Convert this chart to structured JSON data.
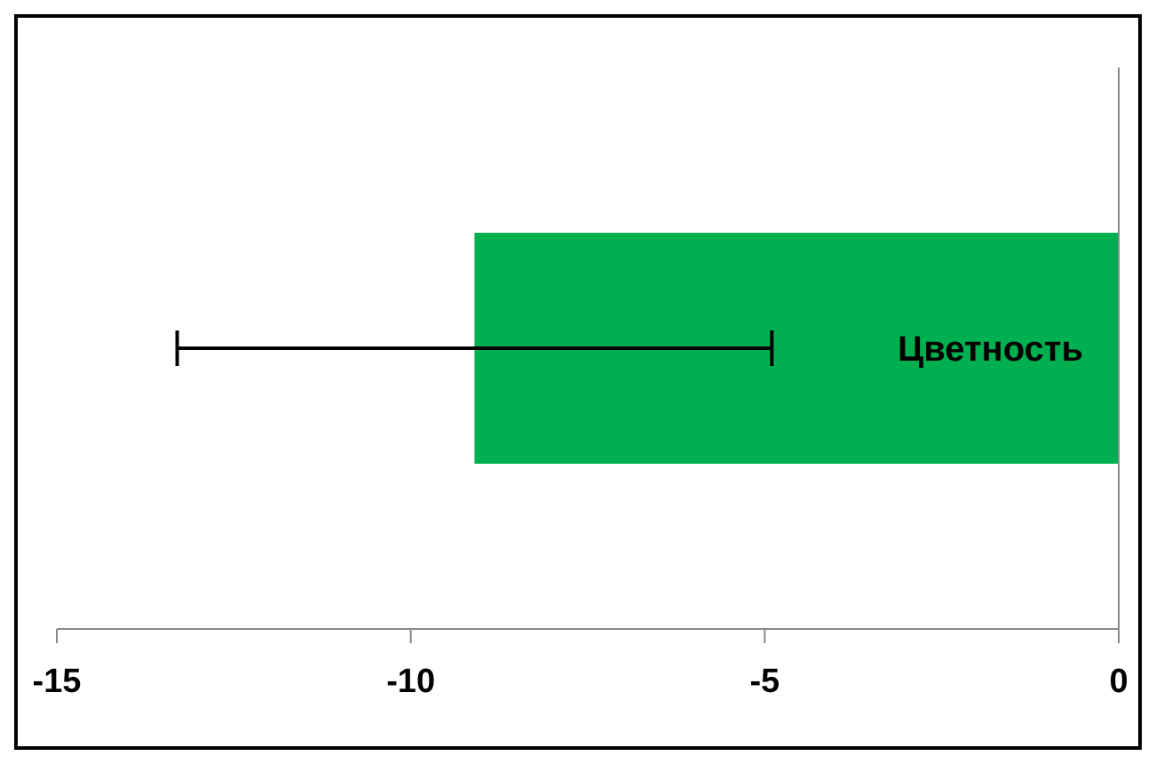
{
  "chart_data": {
    "type": "bar",
    "orientation": "horizontal",
    "categories": [
      "Цветность"
    ],
    "series": [
      {
        "color": "#00b050",
        "values": [
          -9.1
        ],
        "errors": [
          4.2
        ]
      }
    ],
    "xlim": [
      -15,
      0
    ],
    "xticks": [
      -15,
      -10,
      -5,
      0
    ],
    "grid": false,
    "legend": false
  }
}
